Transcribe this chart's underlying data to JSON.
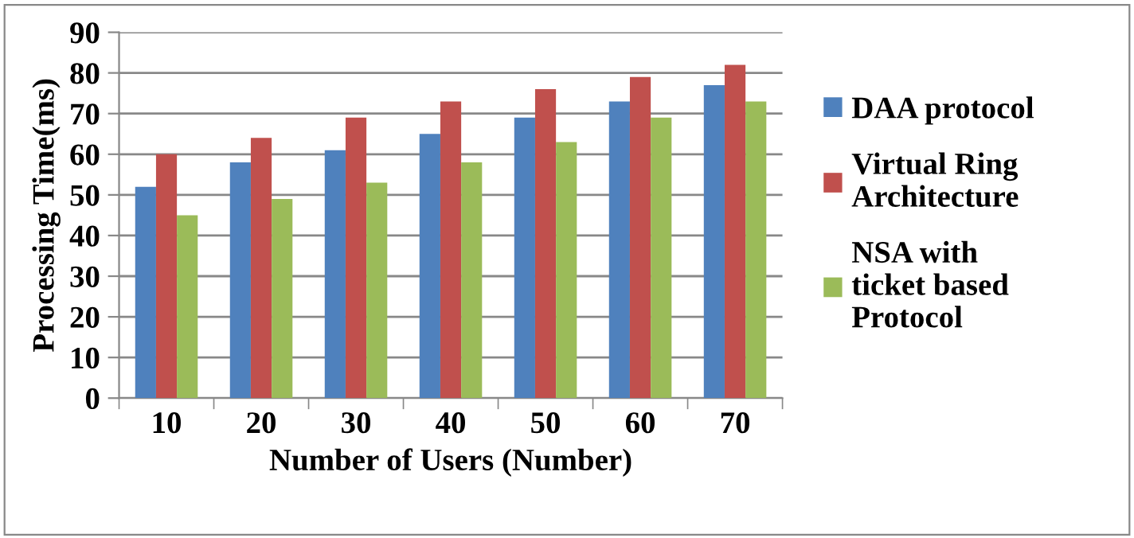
{
  "chart_data": {
    "type": "bar",
    "xlabel": "Number of Users (Number)",
    "ylabel": "Processing Time(ms)",
    "categories": [
      "10",
      "20",
      "30",
      "40",
      "50",
      "60",
      "70"
    ],
    "series": [
      {
        "name": "DAA protocol",
        "color": "#4f81bd",
        "values": [
          52,
          58,
          61,
          65,
          69,
          73,
          77
        ]
      },
      {
        "name": "Virtual Ring Architecture",
        "color": "#c0504d",
        "values": [
          60,
          64,
          69,
          73,
          76,
          79,
          82
        ]
      },
      {
        "name": "NSA with ticket based Protocol",
        "color": "#9bbb59",
        "values": [
          45,
          49,
          53,
          58,
          63,
          69,
          73
        ]
      }
    ],
    "ylim": [
      0,
      90
    ],
    "yticks": [
      0,
      10,
      20,
      30,
      40,
      50,
      60,
      70,
      80,
      90
    ],
    "grid": "y",
    "legend": "right"
  }
}
